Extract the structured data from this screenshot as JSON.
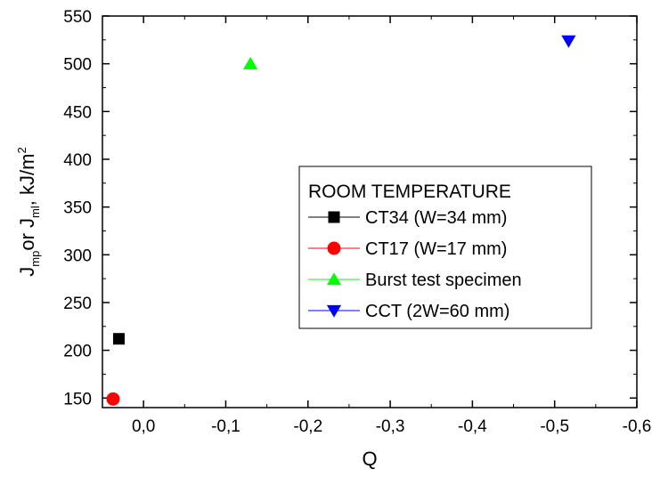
{
  "chart_data": {
    "type": "scatter",
    "xlabel": "Q",
    "ylabel": {
      "parts": [
        "J",
        "mp",
        "or J",
        "ml",
        ", kJ/m",
        "2"
      ]
    },
    "xlim": [
      0.05,
      -0.6
    ],
    "ylim": [
      140,
      550
    ],
    "x_ticks": [
      {
        "value": 0.0,
        "label": "0,0"
      },
      {
        "value": -0.1,
        "label": "-0,1"
      },
      {
        "value": -0.2,
        "label": "-0,2"
      },
      {
        "value": -0.3,
        "label": "-0,3"
      },
      {
        "value": -0.4,
        "label": "-0,4"
      },
      {
        "value": -0.5,
        "label": "-0,5"
      },
      {
        "value": -0.6,
        "label": "-0,6"
      }
    ],
    "y_ticks": [
      {
        "value": 150,
        "label": "150"
      },
      {
        "value": 200,
        "label": "200"
      },
      {
        "value": 250,
        "label": "250"
      },
      {
        "value": 300,
        "label": "300"
      },
      {
        "value": 350,
        "label": "350"
      },
      {
        "value": 400,
        "label": "400"
      },
      {
        "value": 450,
        "label": "450"
      },
      {
        "value": 500,
        "label": "500"
      },
      {
        "value": 550,
        "label": "550"
      }
    ],
    "legend_title": "ROOM TEMPERATURE",
    "legend_position": "center-right",
    "series": [
      {
        "name": "CT34 (W=34 mm)",
        "marker": "square",
        "color": "#000000",
        "points": [
          {
            "x": 0.03,
            "y": 212
          }
        ]
      },
      {
        "name": "CT17 (W=17 mm)",
        "marker": "circle",
        "color": "#ff0000",
        "points": [
          {
            "x": 0.037,
            "y": 149
          }
        ]
      },
      {
        "name": "Burst test specimen",
        "marker": "triangle-up",
        "color": "#00ff00",
        "points": [
          {
            "x": -0.13,
            "y": 500
          }
        ]
      },
      {
        "name": "CCT (2W=60 mm)",
        "marker": "triangle-down",
        "color": "#0000ff",
        "points": [
          {
            "x": -0.517,
            "y": 524
          }
        ]
      }
    ]
  }
}
